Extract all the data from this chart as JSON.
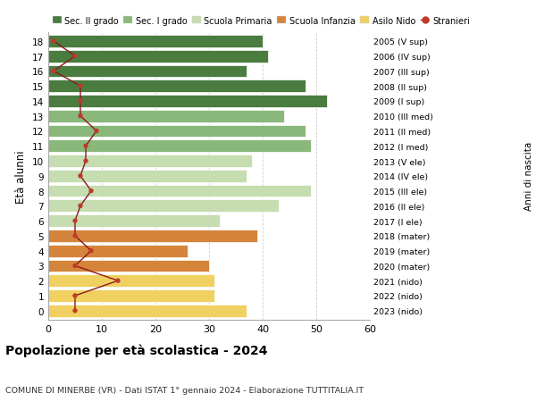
{
  "ages": [
    18,
    17,
    16,
    15,
    14,
    13,
    12,
    11,
    10,
    9,
    8,
    7,
    6,
    5,
    4,
    3,
    2,
    1,
    0
  ],
  "bar_values": [
    40,
    41,
    37,
    48,
    52,
    44,
    48,
    49,
    38,
    37,
    49,
    43,
    32,
    39,
    26,
    30,
    31,
    31,
    37
  ],
  "bar_colors": [
    "#4a7c3f",
    "#4a7c3f",
    "#4a7c3f",
    "#4a7c3f",
    "#4a7c3f",
    "#8ab87a",
    "#8ab87a",
    "#8ab87a",
    "#c5ddb0",
    "#c5ddb0",
    "#c5ddb0",
    "#c5ddb0",
    "#c5ddb0",
    "#d4843b",
    "#d4843b",
    "#d4843b",
    "#f0d060",
    "#f0d060",
    "#f0d060"
  ],
  "stranieri_values": [
    1,
    5,
    1,
    6,
    6,
    6,
    9,
    7,
    7,
    6,
    8,
    6,
    5,
    5,
    8,
    5,
    13,
    5,
    5
  ],
  "right_labels": [
    "2005 (V sup)",
    "2006 (IV sup)",
    "2007 (III sup)",
    "2008 (II sup)",
    "2009 (I sup)",
    "2010 (III med)",
    "2011 (II med)",
    "2012 (I med)",
    "2013 (V ele)",
    "2014 (IV ele)",
    "2015 (III ele)",
    "2016 (II ele)",
    "2017 (I ele)",
    "2018 (mater)",
    "2019 (mater)",
    "2020 (mater)",
    "2021 (nido)",
    "2022 (nido)",
    "2023 (nido)"
  ],
  "legend_labels": [
    "Sec. II grado",
    "Sec. I grado",
    "Scuola Primaria",
    "Scuola Infanzia",
    "Asilo Nido",
    "Stranieri"
  ],
  "legend_colors": [
    "#4a7c3f",
    "#8ab87a",
    "#c5ddb0",
    "#d4843b",
    "#f0d060",
    "#c0392b"
  ],
  "ylabel": "Età alunni",
  "right_ylabel": "Anni di nascita",
  "title": "Popolazione per età scolastica - 2024",
  "subtitle": "COMUNE DI MINERBE (VR) - Dati ISTAT 1° gennaio 2024 - Elaborazione TUTTITALIA.IT",
  "xlim": [
    0,
    60
  ],
  "xticks": [
    0,
    10,
    20,
    30,
    40,
    50,
    60
  ],
  "stranieri_line_color": "#8b1a1a",
  "stranieri_marker_color": "#c0392b",
  "bar_height": 0.82,
  "grid_color": "#cccccc",
  "bg_color": "#ffffff"
}
